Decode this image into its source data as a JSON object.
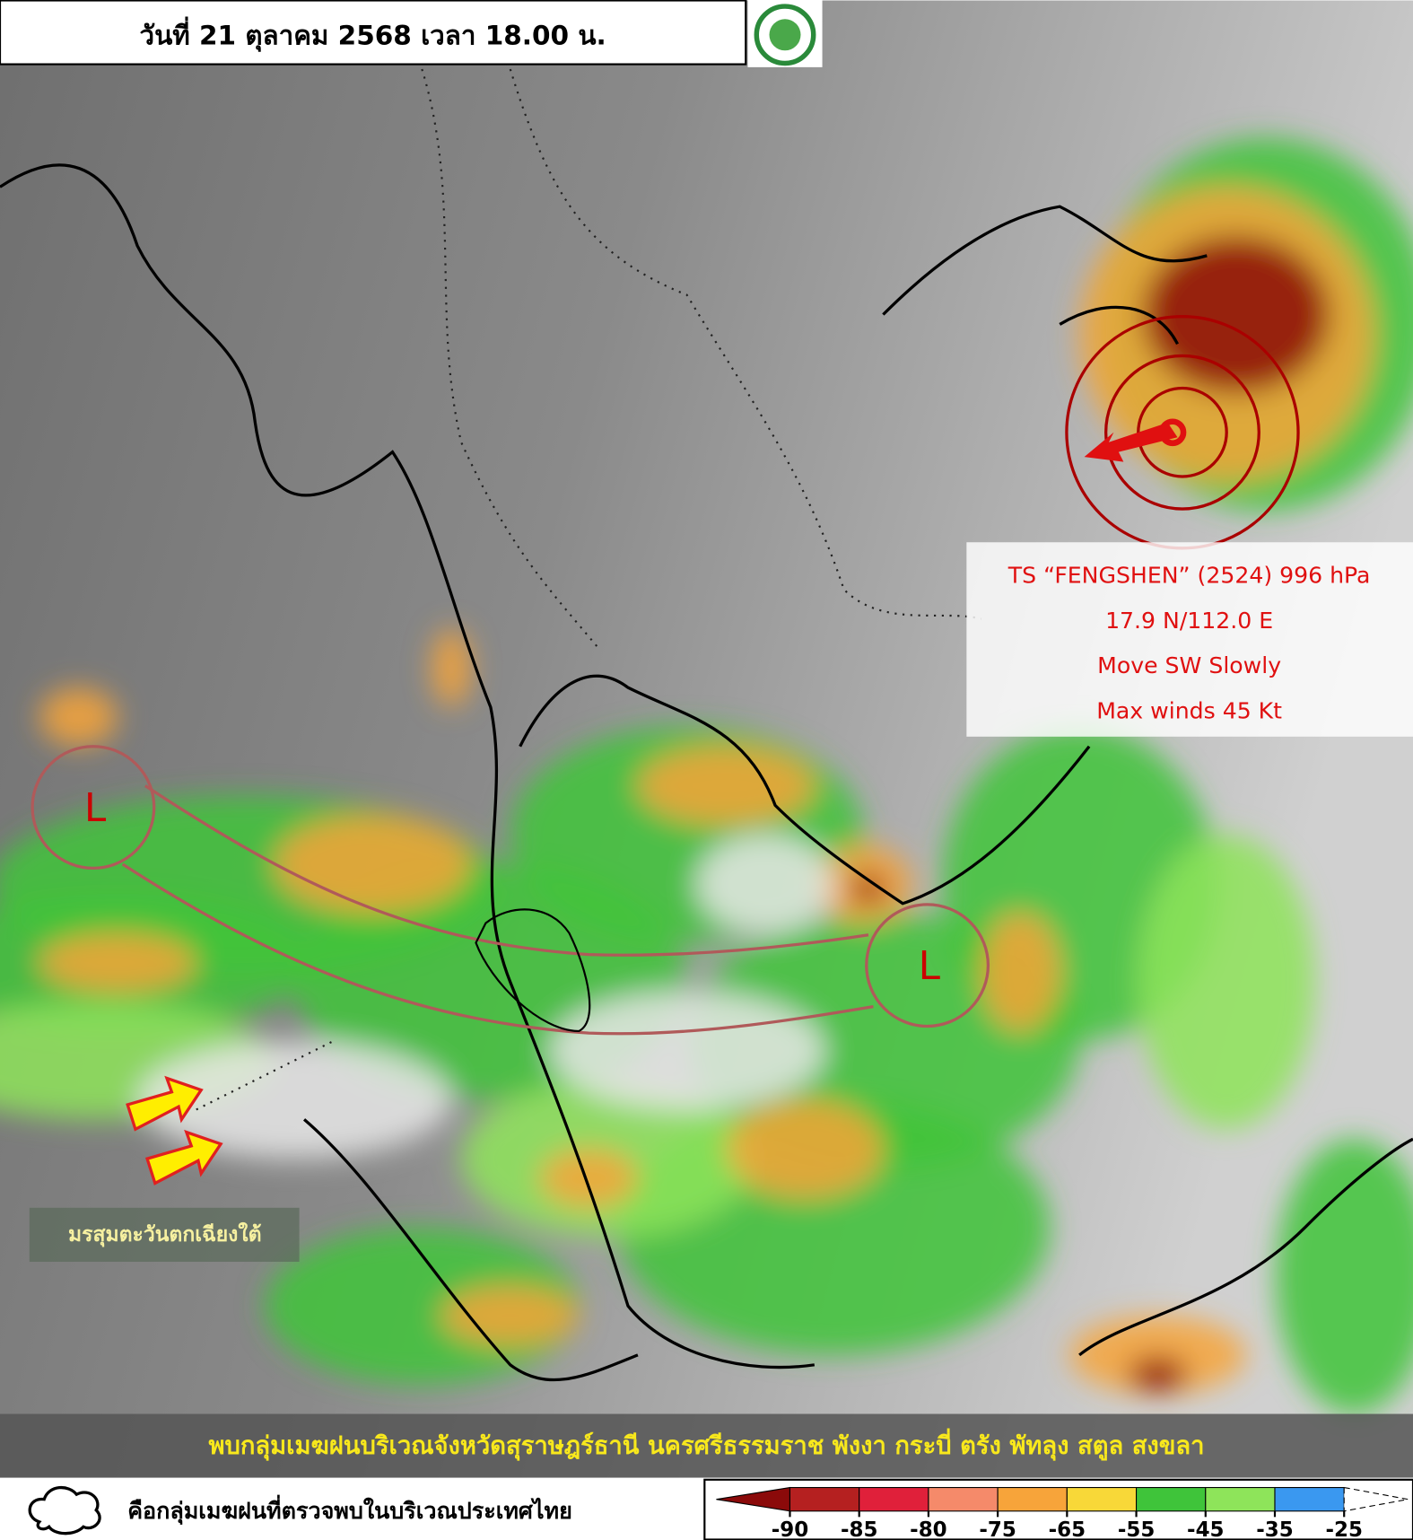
{
  "header": {
    "title": "วันที่ 21 ตุลาคม 2568 เวลา 18.00 น."
  },
  "storm": {
    "lines": [
      "TS “FENGSHEN” (2524) 996 hPa",
      "17.9 N/112.0 E",
      "Move SW Slowly",
      "Max winds 45 Kt"
    ]
  },
  "lows": [
    {
      "label": "L"
    },
    {
      "label": "L"
    }
  ],
  "monsoon_label": "มรสุมตะวันตกเฉียงใต้",
  "banner": "พบกลุ่มเมฆฝนบริเวณจังหวัดสุราษฎร์ธานี นครศรีธรรมราช พังงา กระบี่ ตรัง พัทลุง สตูล สงขลา",
  "legend": {
    "text": "คือกลุ่มเมฆฝนที่ตรวจพบในบริเวณประเทศไทย"
  },
  "colorbar": {
    "ticks": [
      -90,
      -85,
      -80,
      -75,
      -65,
      -55,
      -45,
      -35,
      -25
    ],
    "colors": [
      "#8b0a0a",
      "#b52020",
      "#e0203a",
      "#f58a6a",
      "#f7a43a",
      "#f8d838",
      "#3fc43a",
      "#8ee45a",
      "#3a98f0",
      "#ffffff"
    ]
  }
}
